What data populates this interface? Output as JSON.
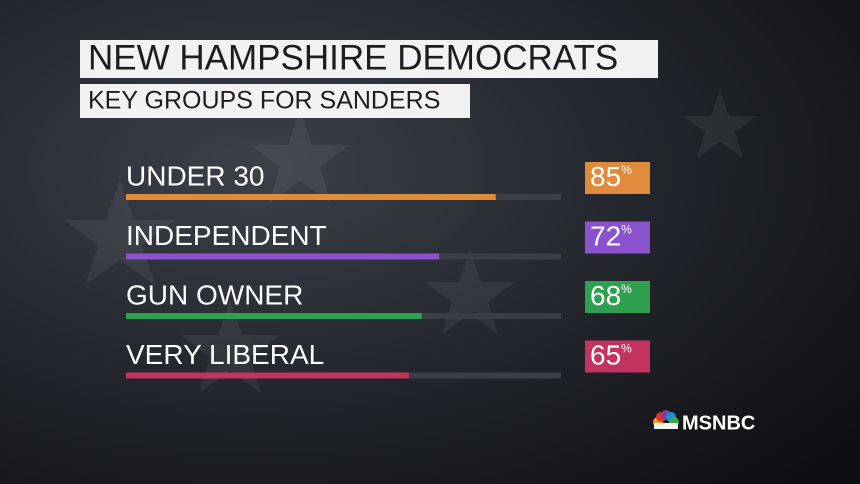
{
  "chart_data": {
    "type": "hbar",
    "title": "NEW HAMPSHIRE DEMOCRATS",
    "subtitle": "KEY GROUPS FOR SANDERS",
    "categories": [
      "UNDER 30",
      "INDEPENDENT",
      "GUN OWNER",
      "VERY LIBERAL"
    ],
    "values": [
      85,
      72,
      68,
      65
    ],
    "value_labels": [
      "85%",
      "72%",
      "68%",
      "65%"
    ],
    "colors": [
      "#e08a3c",
      "#8a52cc",
      "#2f9f50",
      "#c2335f"
    ],
    "xlim": [
      0,
      100
    ],
    "logo": "MSNBC"
  }
}
